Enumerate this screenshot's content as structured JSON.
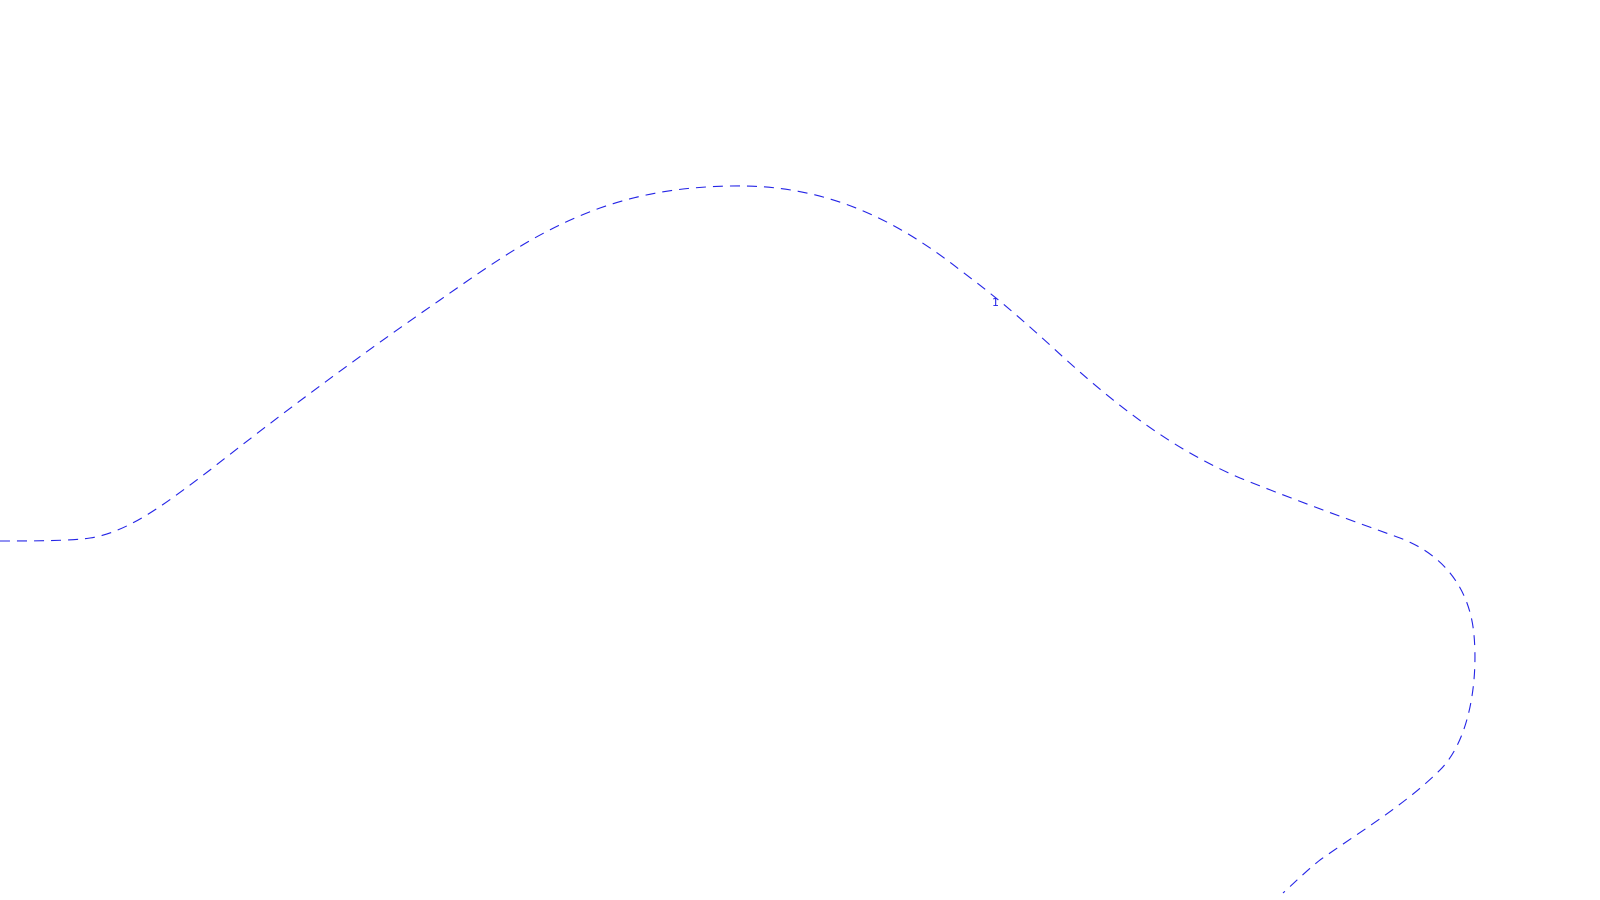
{
  "map": {
    "background": "#ffffff",
    "line_color": "#2424e6",
    "line_style": "dashed",
    "contour": {
      "label": "1"
    }
  }
}
